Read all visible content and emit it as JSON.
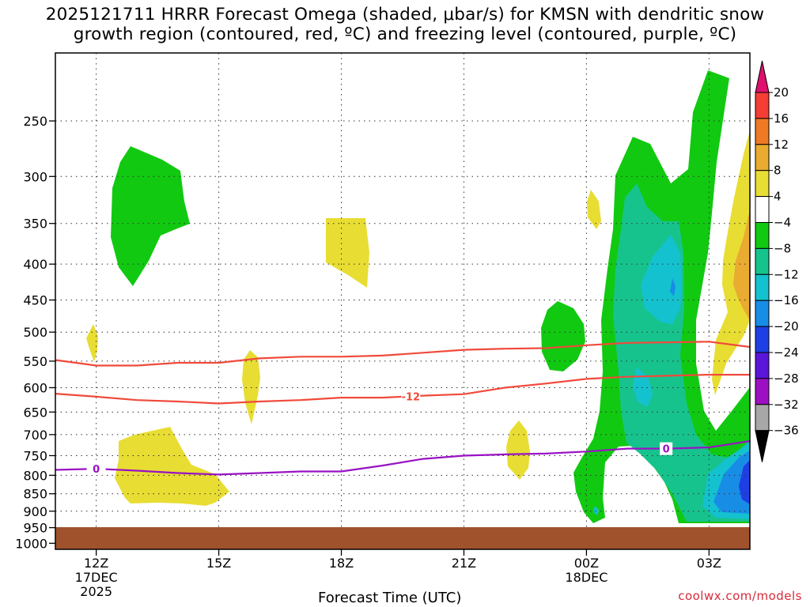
{
  "title": {
    "line1": "2025121711 HRRR Forecast Omega (shaded, μbar/s) for KMSN with dendritic snow",
    "line2": "growth region (contoured, red, ºC) and freezing level (contoured, purple, ºC)"
  },
  "credit": "coolwx.com/models",
  "chart_data": {
    "type": "heatmap",
    "title": "2025121711 HRRR Forecast Omega (shaded, μbar/s) for KMSN with dendritic snow growth region (contoured, red, ºC) and freezing level (contoured, purple, ºC)",
    "xlabel": "Forecast Time (UTC)",
    "ylabel": "",
    "x_range_hours": [
      -1,
      16
    ],
    "x_ticks": [
      {
        "hour": 0,
        "label": "12Z",
        "sub1": "17DEC",
        "sub2": "2025"
      },
      {
        "hour": 3,
        "label": "15Z",
        "sub1": "",
        "sub2": ""
      },
      {
        "hour": 6,
        "label": "18Z",
        "sub1": "",
        "sub2": ""
      },
      {
        "hour": 9,
        "label": "21Z",
        "sub1": "",
        "sub2": ""
      },
      {
        "hour": 12,
        "label": "00Z",
        "sub1": "18DEC",
        "sub2": ""
      },
      {
        "hour": 15,
        "label": "03Z",
        "sub1": "",
        "sub2": ""
      }
    ],
    "y_ticks": [
      250,
      300,
      350,
      400,
      450,
      500,
      550,
      600,
      650,
      700,
      750,
      800,
      850,
      900,
      950,
      1000
    ],
    "y_range_hPa": [
      200,
      1020
    ],
    "grid": true,
    "colorbar": {
      "labels": [
        "20",
        "16",
        "12",
        "8",
        "4",
        "−4",
        "−8",
        "−12",
        "−16",
        "−20",
        "−24",
        "−28",
        "−32",
        "−36"
      ],
      "levels": [
        20,
        16,
        12,
        8,
        4,
        -4,
        -8,
        -12,
        -16,
        -20,
        -24,
        -28,
        -32,
        -36
      ],
      "colors": [
        "#e0116c",
        "#f33d35",
        "#ef7a25",
        "#e9ab30",
        "#e8dd32",
        "#ffffff",
        "#11c911",
        "#17c38d",
        "#14c1cf",
        "#188de6",
        "#1e3fe3",
        "#5a15d8",
        "#9d10c2",
        "#a7a7a7",
        "#000000"
      ]
    },
    "contours": [
      {
        "name": "-12",
        "color": "#f04a3c",
        "label": "-12",
        "x": [
          -1,
          0,
          1,
          2,
          3,
          4,
          5,
          6,
          7,
          8,
          9,
          10,
          11,
          12,
          13,
          14,
          15,
          16
        ],
        "y": [
          612,
          618,
          625,
          628,
          632,
          628,
          625,
          620,
          620,
          616,
          613,
          600,
          592,
          583,
          579,
          577,
          575,
          575
        ]
      },
      {
        "name": "upper",
        "color": "#f04a3c",
        "label": "",
        "x": [
          -1,
          0,
          1,
          2,
          3,
          4,
          5,
          6,
          7,
          8,
          9,
          10,
          11,
          12,
          13,
          14,
          15,
          16
        ],
        "y": [
          548,
          558,
          558,
          553,
          553,
          545,
          542,
          542,
          540,
          535,
          530,
          528,
          527,
          522,
          518,
          517,
          516,
          525
        ]
      },
      {
        "name": "0",
        "color": "#9912c4",
        "label": "0",
        "x": [
          -1,
          0,
          1,
          2,
          3,
          4,
          5,
          6,
          7,
          8,
          9,
          10,
          11,
          12,
          13,
          14,
          15,
          16
        ],
        "y": [
          786,
          783,
          788,
          794,
          798,
          794,
          790,
          790,
          775,
          758,
          750,
          747,
          745,
          740,
          733,
          733,
          730,
          715
        ]
      }
    ],
    "shaded_regions": [
      {
        "level": -4,
        "color": "#11c911"
      },
      {
        "level": -8,
        "color": "#17c38d"
      },
      {
        "level": -12,
        "color": "#14c1cf"
      },
      {
        "level": -16,
        "color": "#188de6"
      },
      {
        "level": 4,
        "color": "#e8dd32"
      },
      {
        "level": 8,
        "color": "#e9ab30"
      }
    ],
    "terrain_color": "#a0522d"
  }
}
